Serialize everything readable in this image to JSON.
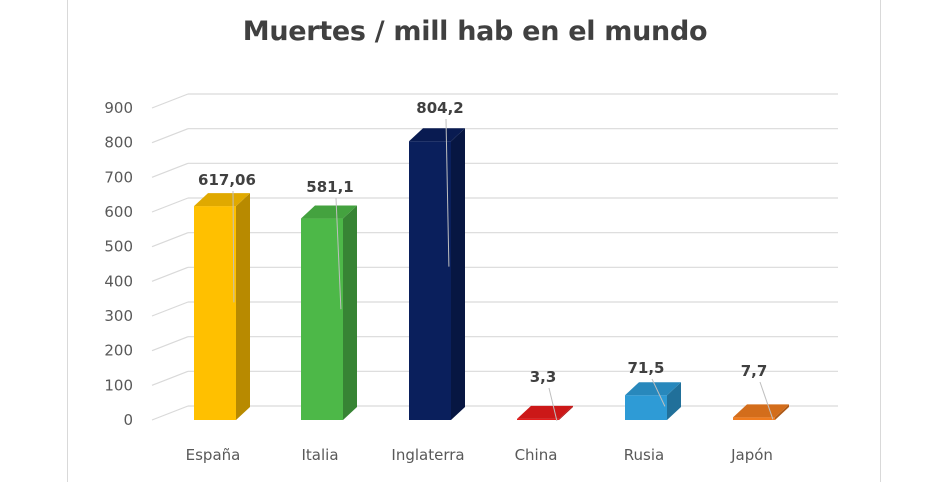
{
  "chart_data": {
    "type": "bar",
    "style": "3d-column",
    "title": "Muertes / mill hab en el mundo",
    "categories": [
      "España",
      "Italia",
      "Inglaterra",
      "China",
      "Rusia",
      "Japón"
    ],
    "values": [
      617.06,
      581.1,
      804.2,
      3.3,
      71.5,
      7.7
    ],
    "value_labels": [
      "617,06",
      "581,1",
      "804,2",
      "3,3",
      "71,5",
      "7,7"
    ],
    "colors": [
      "#FFC000",
      "#4DB848",
      "#0A1F5C",
      "#E81B1B",
      "#2E9BD6",
      "#F07C1F"
    ],
    "ylim": [
      0,
      900
    ],
    "yticks": [
      "0",
      "100",
      "200",
      "300",
      "400",
      "500",
      "600",
      "700",
      "800",
      "900"
    ],
    "grid": true,
    "legend": "none"
  }
}
